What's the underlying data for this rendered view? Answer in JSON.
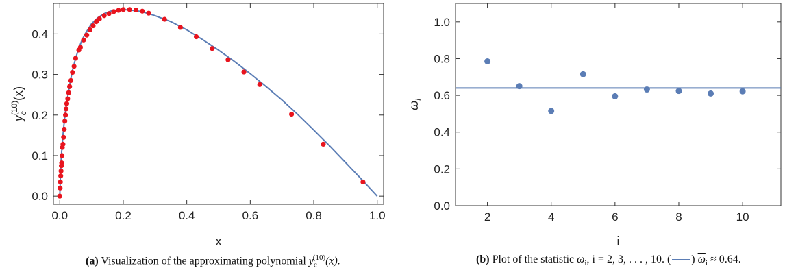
{
  "chart_data": [
    {
      "type": "line",
      "title": "",
      "xlabel": "x",
      "ylabel": "y_c^(10)(x)",
      "ylabel_parts": {
        "base": "y",
        "sub": "c",
        "sup": "(10)",
        "tail": "(x)"
      },
      "xlim": [
        -0.02,
        1.02
      ],
      "ylim": [
        -0.02,
        0.475
      ],
      "xticks": [
        "0.0",
        "0.2",
        "0.4",
        "0.6",
        "0.8",
        "1.0"
      ],
      "xtick_values": [
        0.0,
        0.2,
        0.4,
        0.6,
        0.8,
        1.0
      ],
      "yticks": [
        "0.0",
        "0.1",
        "0.2",
        "0.3",
        "0.4"
      ],
      "ytick_values": [
        0.0,
        0.1,
        0.2,
        0.3,
        0.4
      ],
      "line_color": "#5b7db5",
      "series": [
        {
          "kind": "line",
          "x": [
            0.0,
            0.002,
            0.005,
            0.01,
            0.015,
            0.02,
            0.03,
            0.04,
            0.05,
            0.06,
            0.07,
            0.08,
            0.1,
            0.12,
            0.14,
            0.16,
            0.18,
            0.2,
            0.22,
            0.25,
            0.28,
            0.3,
            0.35,
            0.4,
            0.45,
            0.5,
            0.55,
            0.6,
            0.65,
            0.7,
            0.75,
            0.8,
            0.85,
            0.9,
            0.95,
            1.0
          ],
          "y": [
            0.0,
            0.05,
            0.1,
            0.15,
            0.19,
            0.22,
            0.27,
            0.31,
            0.34,
            0.365,
            0.385,
            0.4,
            0.425,
            0.44,
            0.45,
            0.456,
            0.459,
            0.46,
            0.459,
            0.456,
            0.45,
            0.445,
            0.43,
            0.41,
            0.386,
            0.36,
            0.332,
            0.302,
            0.27,
            0.237,
            0.201,
            0.163,
            0.124,
            0.083,
            0.042,
            0.0
          ]
        },
        {
          "kind": "scatter",
          "color": "#e8141e",
          "x": [
            0.0,
            0.001,
            0.002,
            0.003,
            0.004,
            0.005,
            0.006,
            0.007,
            0.008,
            0.01,
            0.012,
            0.014,
            0.016,
            0.018,
            0.02,
            0.022,
            0.025,
            0.028,
            0.031,
            0.035,
            0.04,
            0.045,
            0.05,
            0.06,
            0.065,
            0.075,
            0.085,
            0.095,
            0.105,
            0.115,
            0.125,
            0.14,
            0.155,
            0.17,
            0.185,
            0.2,
            0.22,
            0.24,
            0.26,
            0.28,
            0.33,
            0.38,
            0.43,
            0.48,
            0.53,
            0.58,
            0.63,
            0.73,
            0.83,
            0.955
          ],
          "y": [
            0.0,
            0.02,
            0.035,
            0.05,
            0.062,
            0.075,
            0.082,
            0.1,
            0.12,
            0.128,
            0.145,
            0.165,
            0.185,
            0.2,
            0.215,
            0.228,
            0.24,
            0.255,
            0.27,
            0.285,
            0.305,
            0.32,
            0.34,
            0.36,
            0.367,
            0.385,
            0.397,
            0.41,
            0.42,
            0.43,
            0.437,
            0.445,
            0.45,
            0.455,
            0.458,
            0.46,
            0.46,
            0.459,
            0.456,
            0.451,
            0.436,
            0.416,
            0.393,
            0.364,
            0.336,
            0.306,
            0.275,
            0.202,
            0.128,
            0.035
          ]
        }
      ]
    },
    {
      "type": "scatter",
      "title": "",
      "xlabel": "i",
      "ylabel": "ω_i",
      "ylabel_parts": {
        "base": "ω",
        "sub": "i"
      },
      "xlim": [
        1.0,
        11.2
      ],
      "ylim": [
        0.0,
        1.1
      ],
      "xticks": [
        "2",
        "4",
        "6",
        "8",
        "10"
      ],
      "xtick_values": [
        2,
        4,
        6,
        8,
        10
      ],
      "yticks": [
        "0.0",
        "0.2",
        "0.4",
        "0.6",
        "0.8",
        "1.0"
      ],
      "ytick_values": [
        0.0,
        0.2,
        0.4,
        0.6,
        0.8,
        1.0
      ],
      "point_color": "#5b7db5",
      "mean": 0.64,
      "x": [
        2,
        3,
        4,
        5,
        6,
        7,
        8,
        9,
        10
      ],
      "y": [
        0.785,
        0.65,
        0.515,
        0.715,
        0.595,
        0.632,
        0.624,
        0.61,
        0.622
      ]
    }
  ],
  "captions": {
    "a": {
      "label": "(a)",
      "text": "Visualization of the approximating polynomial",
      "sym_base": "y",
      "sym_sub": "c",
      "sym_sup": "(10)",
      "sym_tail": "(x)."
    },
    "b": {
      "label": "(b)",
      "text": "Plot of the statistic",
      "sym": "ω",
      "sub": "i",
      "range": ", i = 2, 3, . . . , 10. (",
      "close": ")",
      "mean_sym": "ω",
      "mean_sub": "i",
      "approx": "≈ 0.64."
    }
  }
}
